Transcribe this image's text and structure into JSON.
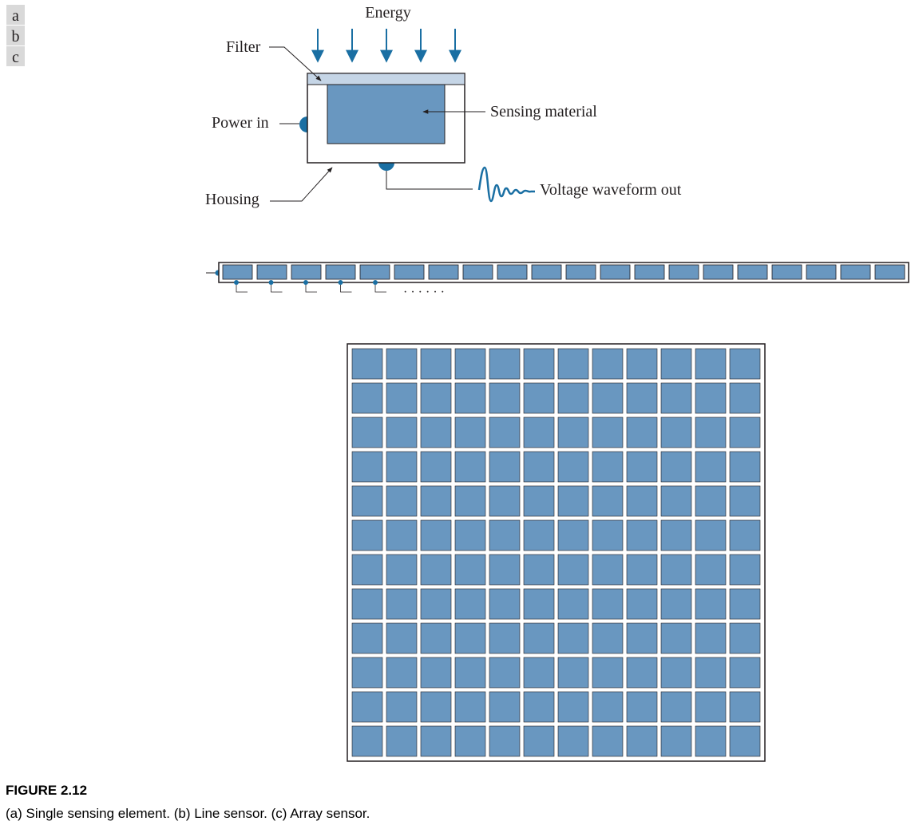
{
  "panel_labels": [
    "a",
    "b",
    "c"
  ],
  "single_element": {
    "energy_label": "Energy",
    "filter_label": "Filter",
    "power_label": "Power in",
    "sensing_label": "Sensing material",
    "housing_label": "Housing",
    "voltage_label": "Voltage waveform out"
  },
  "line_sensor": {
    "cell_count": 20,
    "ellipsis": "· · · · · ·"
  },
  "array_sensor": {
    "rows": 12,
    "cols": 12
  },
  "colors": {
    "cell_fill": "#6997c0",
    "filter_fill": "#c5d5e6",
    "accent_blue": "#1a6fa3",
    "line": "#231f20"
  },
  "caption": {
    "title": "FIGURE 2.12",
    "text": "(a) Single sensing element. (b) Line sensor. (c) Array sensor."
  }
}
